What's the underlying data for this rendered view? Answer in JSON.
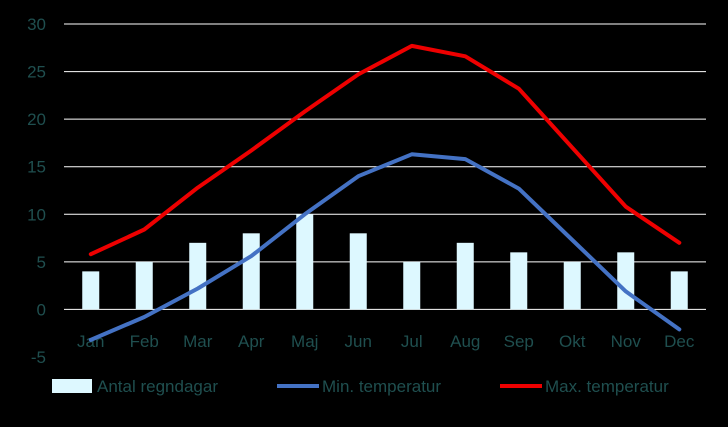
{
  "chart_data": {
    "type": "bar",
    "categories": [
      "Jan",
      "Feb",
      "Mar",
      "Apr",
      "Maj",
      "Jun",
      "Jul",
      "Aug",
      "Sep",
      "Okt",
      "Nov",
      "Dec"
    ],
    "ylim": [
      -5,
      30
    ],
    "yticks": [
      -5,
      0,
      5,
      10,
      15,
      20,
      25,
      30
    ],
    "grid": true,
    "legend_position": "bottom",
    "series": [
      {
        "name": "Antal regndagar",
        "kind": "bar",
        "color": "#ddf8ff",
        "values": [
          4,
          5,
          7,
          8,
          10,
          8,
          5,
          7,
          6,
          5,
          6,
          4
        ]
      },
      {
        "name": "Min. temperatur",
        "kind": "line",
        "color": "#4472c4",
        "values": [
          -3.2,
          -0.8,
          2.2,
          5.6,
          10.0,
          14.0,
          16.3,
          15.8,
          12.7,
          7.3,
          1.9,
          -2.1
        ]
      },
      {
        "name": "Max. temperatur",
        "kind": "line",
        "color": "#ee0000",
        "values": [
          5.8,
          8.4,
          12.8,
          16.7,
          20.8,
          24.7,
          27.7,
          26.6,
          23.2,
          17.0,
          10.8,
          7.0
        ]
      }
    ]
  },
  "colors": {
    "background": "#000000",
    "grid": "#ffffff",
    "text": "#1f4f4f"
  }
}
